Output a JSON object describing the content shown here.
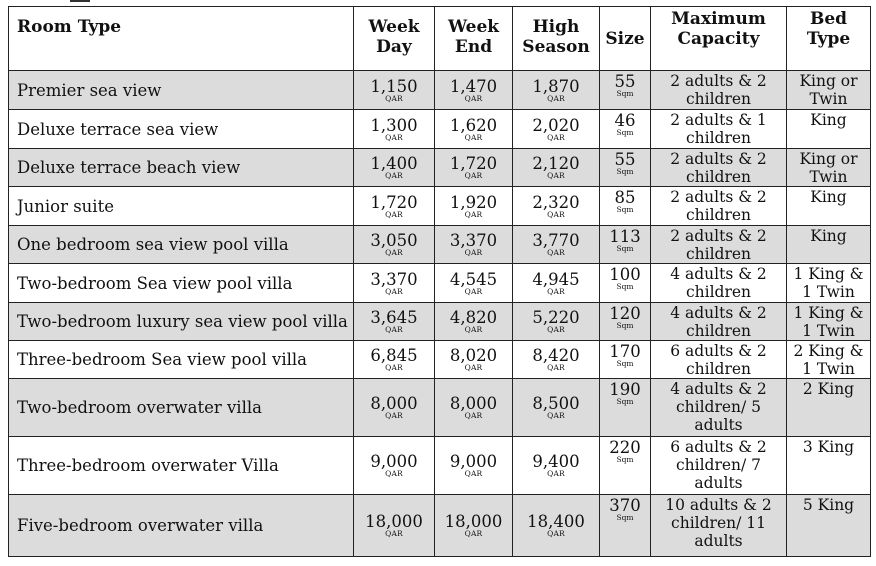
{
  "headers": {
    "room_type": "Room Type",
    "week_day": [
      "Week",
      "Day"
    ],
    "week_end": [
      "Week",
      "End"
    ],
    "high_season": [
      "High",
      "Season"
    ],
    "size": "Size",
    "max_capacity": [
      "Maximum",
      "Capacity"
    ],
    "bed_type": [
      "Bed",
      "Type"
    ]
  },
  "currency": "QAR",
  "size_unit": "Sqm",
  "rows": [
    {
      "room": "Premier sea view",
      "week_day": "1,150",
      "week_end": "1,470",
      "high": "1,870",
      "size": "55",
      "cap": [
        "2 adults & 2",
        "children"
      ],
      "bed": [
        "King or",
        "Twin"
      ]
    },
    {
      "room": "Deluxe terrace sea view",
      "week_day": "1,300",
      "week_end": "1,620",
      "high": "2,020",
      "size": "46",
      "cap": [
        "2 adults & 1",
        "children"
      ],
      "bed": [
        "King"
      ]
    },
    {
      "room": "Deluxe terrace beach view",
      "week_day": "1,400",
      "week_end": "1,720",
      "high": "2,120",
      "size": "55",
      "cap": [
        "2 adults & 2",
        "children"
      ],
      "bed": [
        "King or",
        "Twin"
      ]
    },
    {
      "room": "Junior suite",
      "week_day": "1,720",
      "week_end": "1,920",
      "high": "2,320",
      "size": "85",
      "cap": [
        "2 adults & 2",
        "children"
      ],
      "bed": [
        "King"
      ]
    },
    {
      "room": "One bedroom sea view pool villa",
      "week_day": "3,050",
      "week_end": "3,370",
      "high": "3,770",
      "size": "113",
      "cap": [
        "2 adults & 2",
        "children"
      ],
      "bed": [
        "King"
      ]
    },
    {
      "room": "Two-bedroom Sea view pool villa",
      "week_day": "3,370",
      "week_end": "4,545",
      "high": "4,945",
      "size": "100",
      "cap": [
        "4 adults & 2",
        "children"
      ],
      "bed": [
        "1 King &",
        "1 Twin"
      ]
    },
    {
      "room": "Two-bedroom luxury sea view pool villa",
      "week_day": "3,645",
      "week_end": "4,820",
      "high": "5,220",
      "size": "120",
      "cap": [
        "4 adults & 2",
        "children"
      ],
      "bed": [
        "1 King &",
        "1 Twin"
      ]
    },
    {
      "room": "Three-bedroom Sea view pool villa",
      "week_day": "6,845",
      "week_end": "8,020",
      "high": "8,420",
      "size": "170",
      "cap": [
        "6 adults & 2",
        "children"
      ],
      "bed": [
        "2 King &",
        "1 Twin"
      ]
    },
    {
      "room": "Two-bedroom overwater villa",
      "week_day": "8,000",
      "week_end": "8,000",
      "high": "8,500",
      "size": "190",
      "cap": [
        "4 adults & 2",
        "children/ 5",
        "adults"
      ],
      "bed": [
        "2 King"
      ]
    },
    {
      "room": "Three-bedroom overwater Villa",
      "week_day": "9,000",
      "week_end": "9,000",
      "high": "9,400",
      "size": "220",
      "cap": [
        "6 adults & 2",
        "children/ 7",
        "adults"
      ],
      "bed": [
        "3 King"
      ]
    },
    {
      "room": "Five-bedroom overwater villa",
      "week_day": "18,000",
      "week_end": "18,000",
      "high": "18,400",
      "size": "370",
      "cap": [
        "10 adults & 2",
        "children/ 11",
        "adults"
      ],
      "bed": [
        "5 King"
      ]
    }
  ]
}
